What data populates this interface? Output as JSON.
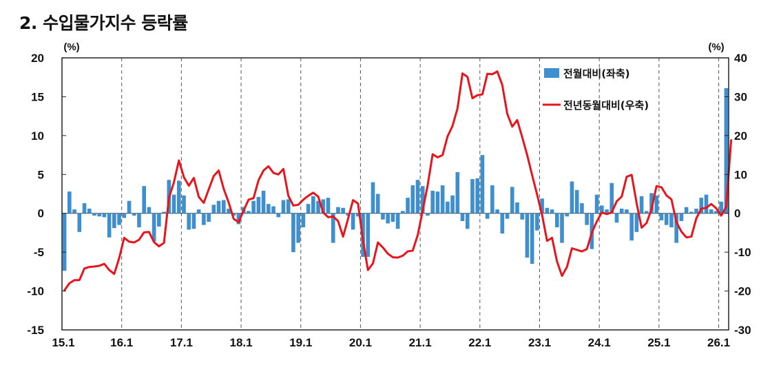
{
  "title": "2. 수입물가지수 등락률",
  "chart_data": {
    "type": "bar+line",
    "title": "2. 수입물가지수 등락률",
    "y_left_unit": "(%)",
    "y_right_unit": "(%)",
    "y_left_range": [
      -15,
      20
    ],
    "y_right_range": [
      -30,
      40
    ],
    "y_left_ticks": [
      "20",
      "15",
      "10",
      "5",
      "0",
      "-5",
      "-10",
      "-15"
    ],
    "y_right_ticks": [
      "40",
      "30",
      "20",
      "10",
      "0",
      "-10",
      "-20",
      "-30"
    ],
    "x_tick_labels": [
      "15.1",
      "16.1",
      "17.1",
      "18.1",
      "19.1",
      "20.1",
      "21.1",
      "22.1",
      "23.1",
      "24.1",
      "25.1",
      "26.1"
    ],
    "legend_placement": "top-right",
    "grid": "vertical dashed at year starts",
    "colors": {
      "bar": "#3f8fcf",
      "line": "#e8141c"
    },
    "series": [
      {
        "name": "전월대비(좌축)",
        "axis": "left",
        "type": "bar",
        "values": [
          -7.4,
          2.8,
          0.5,
          -2.4,
          1.3,
          0.6,
          -0.3,
          -0.4,
          -0.5,
          -3.1,
          -1.9,
          -1.5,
          -0.6,
          1.6,
          -0.3,
          -1.8,
          3.5,
          0.8,
          -3.6,
          -1.7,
          0.2,
          4.3,
          2.4,
          4.2,
          2.3,
          -2.1,
          -2.0,
          0.5,
          -1.5,
          -1.1,
          1.1,
          1.6,
          1.7,
          0.6,
          -0.3,
          -1.4,
          0.8,
          0.3,
          1.6,
          2.1,
          2.9,
          1.2,
          0.9,
          -0.5,
          1.7,
          1.8,
          -5.0,
          -3.8,
          -1.8,
          1.2,
          2.2,
          1.6,
          1.8,
          2.0,
          -3.8,
          0.8,
          0.7,
          -0.3,
          -2.1,
          -0.4,
          -5.6,
          -5.6,
          4.0,
          2.5,
          -0.8,
          -1.3,
          -1.1,
          -2.0,
          0.3,
          2.0,
          3.6,
          4.3,
          3.5,
          -0.3,
          2.9,
          2.8,
          3.6,
          1.5,
          2.3,
          5.3,
          -1.0,
          -2.0,
          4.4,
          4.5,
          7.5,
          -0.7,
          3.6,
          0.5,
          -2.6,
          -0.7,
          3.4,
          1.4,
          -0.8,
          -5.7,
          -6.5,
          -2.2,
          1.9,
          0.7,
          0.5,
          -1.8,
          -3.8,
          -0.4,
          4.1,
          3.0,
          1.3,
          -1.5,
          -4.6,
          2.4,
          1.0,
          0.5,
          3.9,
          -1.2,
          0.6,
          0.5,
          -3.5,
          -2.4,
          2.2,
          0.3,
          2.6,
          2.3,
          -0.9,
          -1.5,
          -1.8,
          -3.8,
          -1.0,
          0.8,
          0.2,
          0.6,
          2.0,
          2.4,
          0.5,
          0.3,
          1.5,
          16.1
        ]
      },
      {
        "name": "전년동월대비(우축)",
        "axis": "right",
        "type": "line",
        "values": [
          -19.8,
          -18.0,
          -17.2,
          -17.2,
          -14.2,
          -13.8,
          -13.7,
          -13.5,
          -13.0,
          -14.6,
          -15.6,
          -11.5,
          -6.3,
          -7.3,
          -7.5,
          -6.8,
          -4.9,
          -4.8,
          -7.4,
          -8.5,
          -7.6,
          4.0,
          8.0,
          13.6,
          9.3,
          7.1,
          9.1,
          4.2,
          2.7,
          6.2,
          9.6,
          11.0,
          6.3,
          2.8,
          -1.4,
          -2.3,
          0.7,
          3.5,
          3.9,
          8.5,
          11.0,
          12.1,
          10.4,
          10.0,
          11.4,
          4.5,
          2.0,
          2.2,
          3.5,
          4.5,
          5.3,
          4.3,
          0.2,
          -1.0,
          -0.8,
          -2.0,
          -6.0,
          -1.4,
          3.4,
          2.5,
          -6.9,
          -14.6,
          -12.9,
          -7.5,
          -8.8,
          -10.4,
          -11.3,
          -11.4,
          -10.9,
          -9.8,
          -9.6,
          -5.6,
          0.7,
          7.2,
          15.2,
          14.4,
          15.0,
          19.8,
          22.5,
          27.0,
          36.0,
          35.1,
          29.6,
          30.4,
          30.6,
          35.9,
          35.8,
          36.5,
          33.0,
          25.6,
          22.3,
          24.0,
          19.6,
          15.0,
          9.8,
          4.8,
          -0.4,
          -7.1,
          -6.3,
          -12.4,
          -16.1,
          -13.8,
          -9.0,
          -9.4,
          -9.8,
          -9.2,
          -5.0,
          -2.1,
          0.2,
          -0.2,
          0.2,
          3.1,
          4.3,
          9.4,
          9.9,
          2.6,
          -3.7,
          -2.5,
          1.1,
          7.0,
          6.7,
          4.6,
          3.6,
          -2.3,
          -4.7,
          -6.2,
          -6.0,
          -1.3,
          1.2,
          1.4,
          2.4,
          1.3,
          -0.6,
          1.7,
          18.8
        ]
      }
    ]
  }
}
